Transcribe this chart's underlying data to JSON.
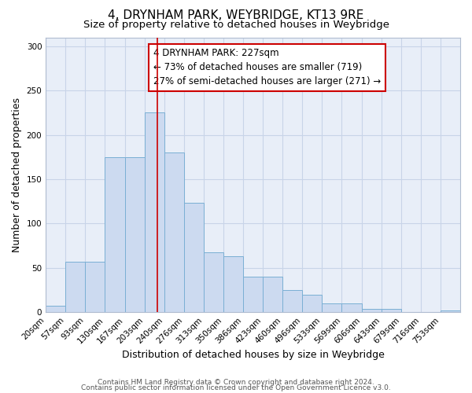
{
  "title": "4, DRYNHAM PARK, WEYBRIDGE, KT13 9RE",
  "subtitle": "Size of property relative to detached houses in Weybridge",
  "xlabel": "Distribution of detached houses by size in Weybridge",
  "ylabel": "Number of detached properties",
  "bin_labels": [
    "20sqm",
    "57sqm",
    "93sqm",
    "130sqm",
    "167sqm",
    "203sqm",
    "240sqm",
    "276sqm",
    "313sqm",
    "350sqm",
    "386sqm",
    "423sqm",
    "460sqm",
    "496sqm",
    "533sqm",
    "569sqm",
    "606sqm",
    "643sqm",
    "679sqm",
    "716sqm",
    "753sqm"
  ],
  "bar_values": [
    7,
    57,
    57,
    175,
    175,
    225,
    180,
    123,
    68,
    63,
    40,
    40,
    25,
    20,
    10,
    10,
    4,
    4,
    0,
    0,
    2
  ],
  "bar_color": "#ccdaf0",
  "bar_edge_color": "#7aafd4",
  "property_bin_index": 6,
  "red_line_color": "#cc0000",
  "annotation_line1": "4 DRYNHAM PARK: 227sqm",
  "annotation_line2": "← 73% of detached houses are smaller (719)",
  "annotation_line3": "27% of semi-detached houses are larger (271) →",
  "annotation_box_edge_color": "#cc0000",
  "ylim": [
    0,
    310
  ],
  "yticks": [
    0,
    50,
    100,
    150,
    200,
    250,
    300
  ],
  "grid_color": "#c8d4e8",
  "background_color": "#e8eef8",
  "footer_line1": "Contains HM Land Registry data © Crown copyright and database right 2024.",
  "footer_line2": "Contains public sector information licensed under the Open Government Licence v3.0.",
  "title_fontsize": 11,
  "subtitle_fontsize": 9.5,
  "axis_label_fontsize": 9,
  "tick_fontsize": 7.5,
  "annotation_fontsize": 8.5,
  "footer_fontsize": 6.5
}
